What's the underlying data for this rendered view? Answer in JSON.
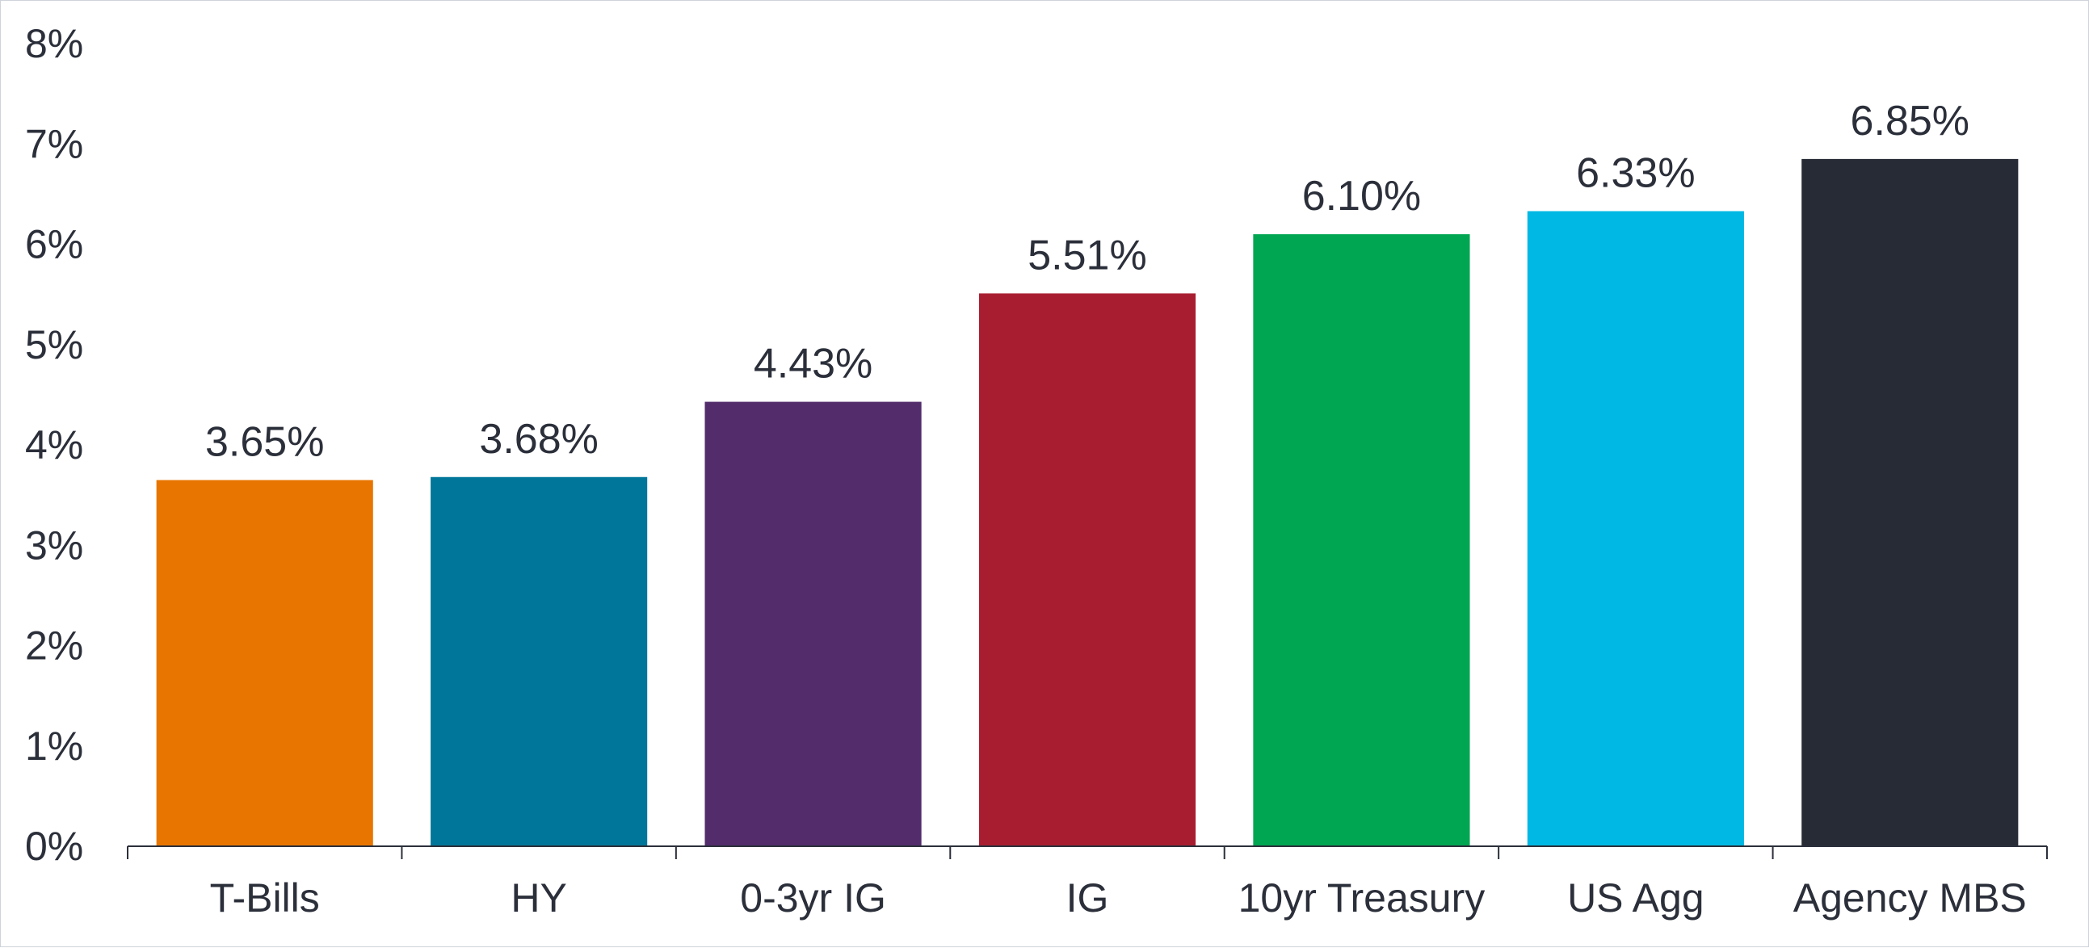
{
  "chart_data": {
    "type": "bar",
    "categories": [
      "T-Bills",
      "HY",
      "0-3yr IG",
      "IG",
      "10yr Treasury",
      "US Agg",
      "Agency MBS"
    ],
    "values": [
      3.65,
      3.68,
      4.43,
      5.51,
      6.1,
      6.33,
      6.85
    ],
    "data_labels": [
      "3.65%",
      "3.68%",
      "4.43%",
      "5.51%",
      "6.10%",
      "6.33%",
      "6.85%"
    ],
    "colors": [
      "#E87500",
      "#00769A",
      "#532C6B",
      "#A81E30",
      "#00A651",
      "#00B8E4",
      "#262B36"
    ],
    "ylim": [
      0,
      8
    ],
    "y_ticks": [
      0,
      1,
      2,
      3,
      4,
      5,
      6,
      7,
      8
    ],
    "y_tick_labels": [
      "0%",
      "1%",
      "2%",
      "3%",
      "4%",
      "5%",
      "6%",
      "7%",
      "8%"
    ],
    "grid": false,
    "legend": "none",
    "title": "",
    "xlabel": "",
    "ylabel": ""
  }
}
